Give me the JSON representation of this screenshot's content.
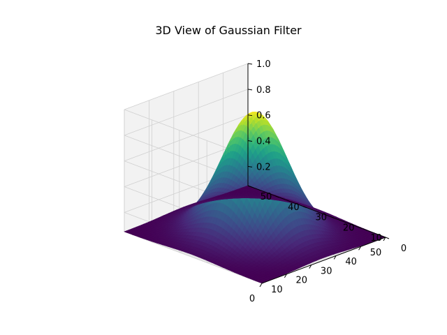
{
  "chart_data": {
    "type": "surface3d",
    "title": "3D View of Gaussian Filter",
    "xlabel": "",
    "ylabel": "",
    "zlabel": "",
    "grid_size": 51,
    "x_range": [
      0,
      50
    ],
    "y_range": [
      0,
      50
    ],
    "z_range": [
      0.05,
      1.0
    ],
    "x_ticks": [
      "0",
      "10",
      "20",
      "30",
      "40",
      "50"
    ],
    "y_ticks": [
      "0",
      "10",
      "20",
      "30",
      "40",
      "50"
    ],
    "z_ticks": [
      "0.2",
      "0.4",
      "0.6",
      "0.8",
      "1.0"
    ],
    "peak": {
      "x": 25,
      "y": 25,
      "z": 1.0
    },
    "sigma": 9,
    "colormap": "viridis",
    "grid": true
  }
}
